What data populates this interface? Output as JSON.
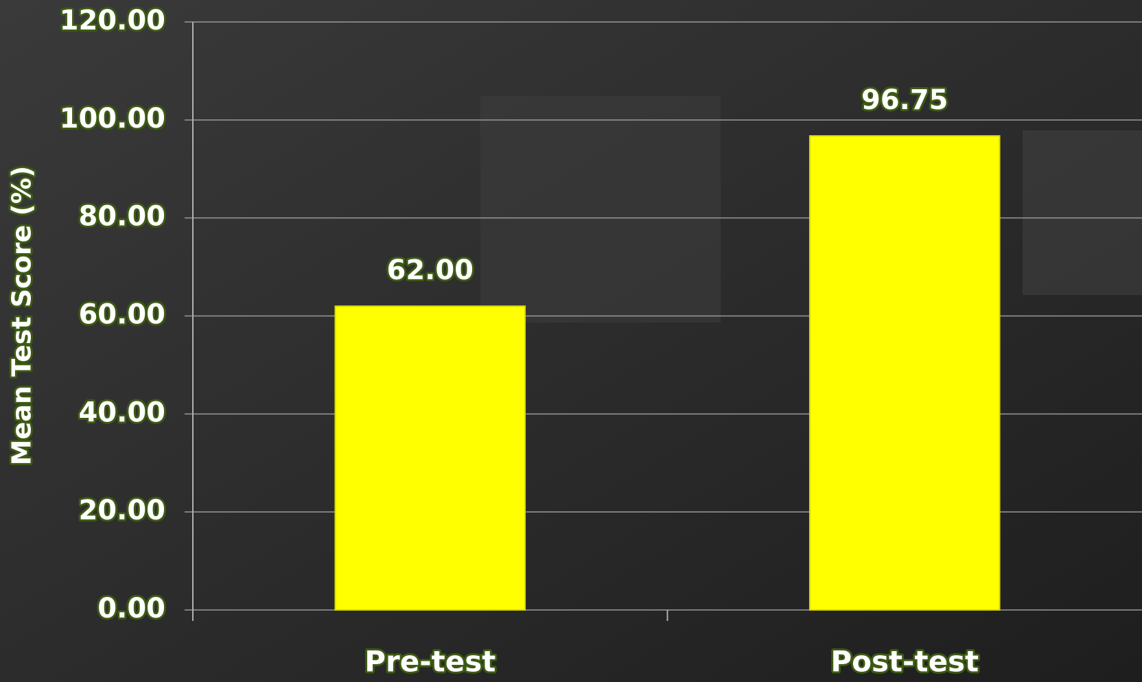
{
  "chart_data": {
    "type": "bar",
    "y_label": "Mean Test Score (%)",
    "categories": [
      "Pre-test",
      "Post-test"
    ],
    "values": [
      62,
      96.75
    ],
    "value_labels": [
      "62.00",
      "96.75"
    ],
    "color": "#ffff00",
    "ylim": [
      0,
      120
    ],
    "yticks": [
      {
        "value": 0,
        "label": "0.00"
      },
      {
        "value": 20,
        "label": "20.00"
      },
      {
        "value": 40,
        "label": "40.00"
      },
      {
        "value": 60,
        "label": "60.00"
      },
      {
        "value": 80,
        "label": "80.00"
      },
      {
        "value": 100,
        "label": "100.00"
      },
      {
        "value": 120,
        "label": "120.00"
      }
    ],
    "grid": true
  }
}
